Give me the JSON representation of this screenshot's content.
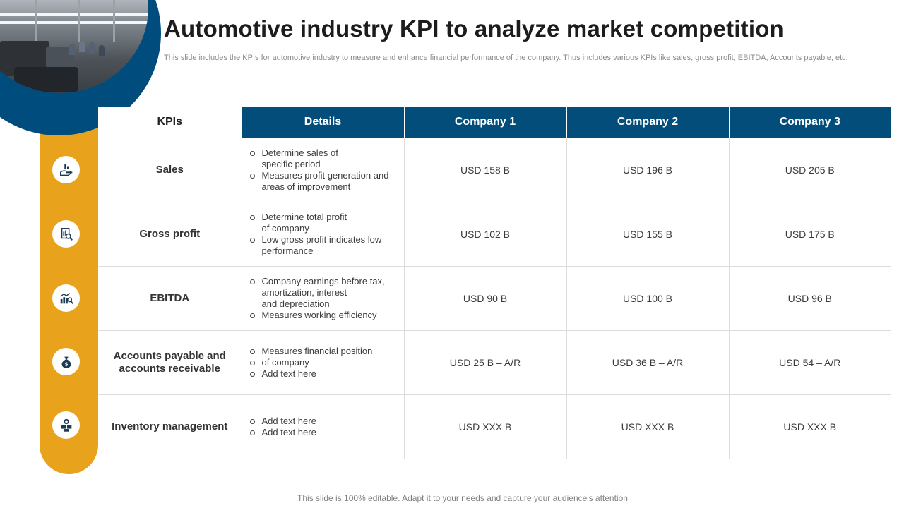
{
  "title": "Automotive industry KPI to analyze market competition",
  "subtitle": "This slide includes the KPIs for automotive industry to measure and enhance financial performance of the company. Thus includes various KPIs like sales, gross profit, EBITDA, Accounts payable, etc.",
  "table": {
    "headers": [
      "KPIs",
      "Details",
      "Company  1",
      "Company  2",
      "Company  3"
    ],
    "rows": [
      {
        "kpi": "Sales",
        "icon": "money-hand-icon",
        "details": [
          "Determine sales of",
          "specific period",
          "Measures profit generation and",
          "areas of improvement"
        ],
        "values": [
          "USD 158 B",
          "USD 196 B",
          "USD 205 B"
        ]
      },
      {
        "kpi": "Gross profit",
        "icon": "report-search-icon",
        "details": [
          "Determine total profit",
          "of company",
          "Low gross profit indicates low",
          "performance"
        ],
        "values": [
          "USD 102 B",
          "USD 155 B",
          "USD 175 B"
        ]
      },
      {
        "kpi": "EBITDA",
        "icon": "chart-magnifier-icon",
        "details": [
          "Company earnings before tax,",
          "amortization, interest",
          "and depreciation",
          "Measures working efficiency"
        ],
        "values": [
          "USD 90 B",
          "USD 100 B",
          "USD 96 B"
        ]
      },
      {
        "kpi_line1": "Accounts payable and",
        "kpi_line2": "accounts receivable",
        "icon": "money-bag-icon",
        "details": [
          "Measures financial position",
          "of company",
          "Add text here"
        ],
        "values": [
          "USD 25 B – A/R",
          "USD 36 B – A/R",
          "USD 54 – A/R"
        ]
      },
      {
        "kpi": "Inventory management",
        "icon": "boxes-gear-icon",
        "details": [
          "Add text here",
          "Add text here"
        ],
        "values": [
          "USD XXX  B",
          "USD XXX  B",
          "USD XXX  B"
        ]
      }
    ]
  },
  "footer": "This slide is 100% editable. Adapt it to your needs and capture your audience's attention",
  "colors": {
    "primary_blue": "#034d7b",
    "accent_yellow": "#e8a21c"
  }
}
